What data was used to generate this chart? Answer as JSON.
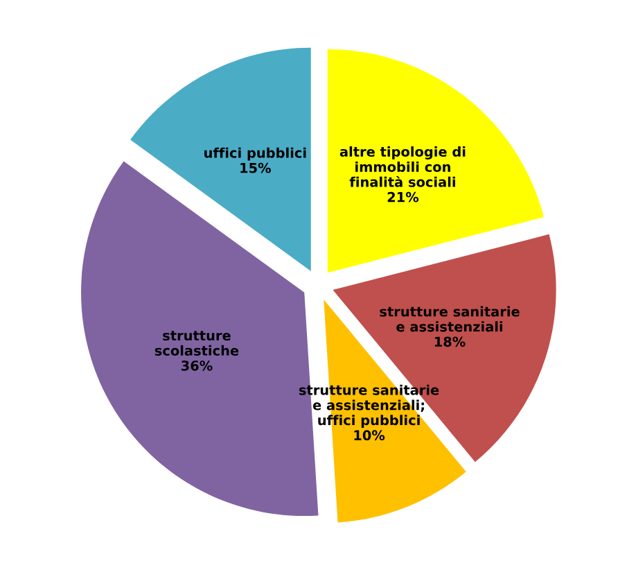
{
  "chart_data": {
    "type": "pie",
    "categories": [
      "altre tipologie di\nimmobili con\nfinalità sociali",
      "strutture sanitarie\ne assistenziali",
      "strutture sanitarie\ne assistenziali;\nuffici pubblici",
      "strutture\nscolastiche",
      "uffici pubblici"
    ],
    "values": [
      21,
      18,
      10,
      36,
      15
    ],
    "value_labels": [
      "21%",
      "18%",
      "10%",
      "36%",
      "15%"
    ],
    "colors": [
      "#ffff00",
      "#c0504d",
      "#ffc000",
      "#8064a2",
      "#4bacc6"
    ],
    "legend": false
  }
}
